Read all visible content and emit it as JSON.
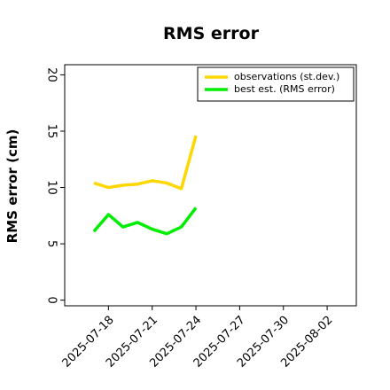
{
  "chart_data": {
    "type": "line",
    "title": "RMS error",
    "ylabel": "RMS error (cm)",
    "x": [
      "2025-07-17",
      "2025-07-18",
      "2025-07-19",
      "2025-07-20",
      "2025-07-21",
      "2025-07-22",
      "2025-07-23",
      "2025-07-24"
    ],
    "series": [
      {
        "name": "observations (st.dev.)",
        "color": "#ffd700",
        "values": [
          10.4,
          10.0,
          10.2,
          10.3,
          10.6,
          10.4,
          9.9,
          14.6
        ]
      },
      {
        "name": "best est. (RMS error)",
        "color": "#00ee00",
        "values": [
          6.1,
          7.6,
          6.5,
          6.9,
          6.3,
          5.9,
          6.5,
          8.2
        ]
      }
    ],
    "xlim": [
      "2025-07-15",
      "2025-08-04"
    ],
    "xticks": [
      "2025-07-18",
      "2025-07-21",
      "2025-07-24",
      "2025-07-27",
      "2025-07-30",
      "2025-08-02"
    ],
    "xtick_label_colors": [
      "#000000",
      "#000000",
      "#228b22",
      "#000000",
      "#000000",
      "#000000"
    ],
    "ylim": [
      -0.5,
      20.9
    ],
    "yticks": [
      0,
      5,
      10,
      15,
      20
    ],
    "legend": "upper right",
    "grid": false
  }
}
